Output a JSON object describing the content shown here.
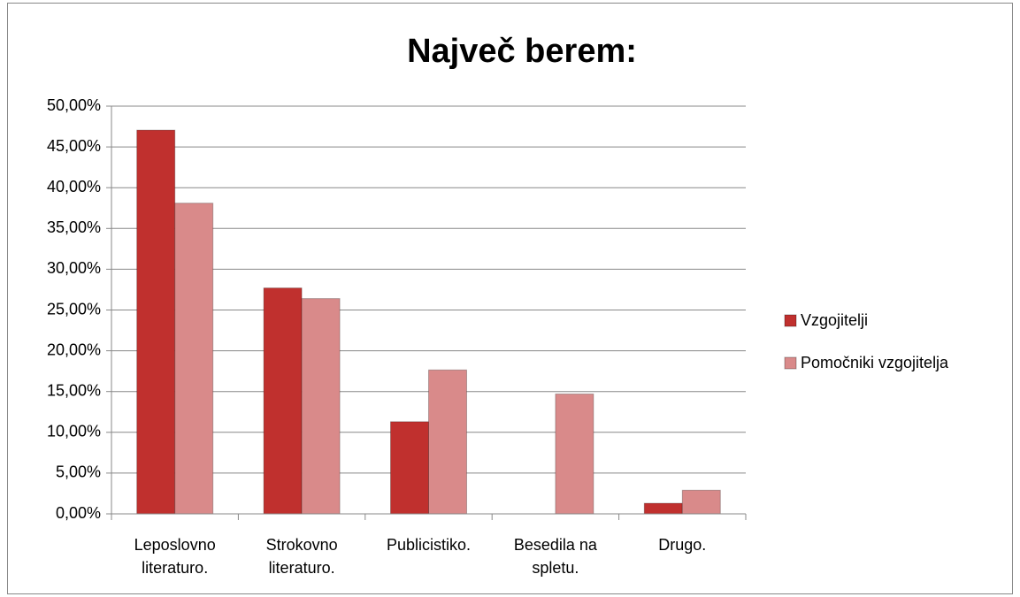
{
  "chart_data": {
    "type": "bar",
    "title": "Največ berem:",
    "categories": [
      "Leposlovno literaturo.",
      "Strokovno literaturo.",
      "Publicistiko.",
      "Besedila na spletu.",
      "Drugo."
    ],
    "series": [
      {
        "name": "Vzgojitelji",
        "color": "#c0302e",
        "values": [
          47.06,
          27.7,
          11.3,
          0,
          1.3
        ]
      },
      {
        "name": "Pomočniki vzgojitelja",
        "color": "#d98a8a",
        "values": [
          38.1,
          26.4,
          17.65,
          14.7,
          2.9
        ]
      }
    ],
    "ylim": [
      0,
      50
    ],
    "yticks": [
      {
        "value": 0,
        "label": "0,00%"
      },
      {
        "value": 5,
        "label": "5,00%"
      },
      {
        "value": 10,
        "label": "10,00%"
      },
      {
        "value": 15,
        "label": "15,00%"
      },
      {
        "value": 20,
        "label": "20,00%"
      },
      {
        "value": 25,
        "label": "25,00%"
      },
      {
        "value": 30,
        "label": "30,00%"
      },
      {
        "value": 35,
        "label": "35,00%"
      },
      {
        "value": 40,
        "label": "40,00%"
      },
      {
        "value": 45,
        "label": "45,00%"
      },
      {
        "value": 50,
        "label": "50,00%"
      }
    ],
    "grid": true,
    "legend": "right"
  }
}
